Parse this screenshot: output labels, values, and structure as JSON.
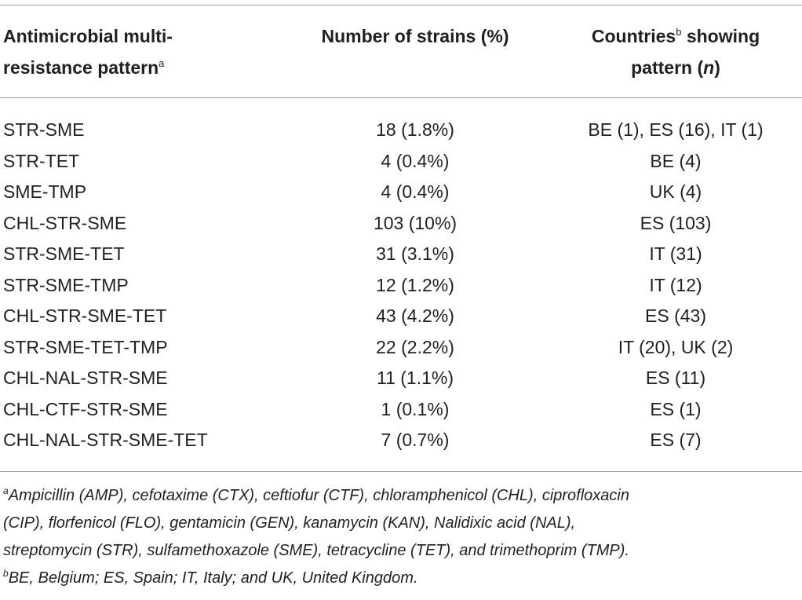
{
  "header": {
    "col1_line1": "Antimicrobial multi-",
    "col1_line2": "resistance pattern",
    "col1_sup": "a",
    "col2": "Number of strains (%)",
    "col3_line1_a": "Countries",
    "col3_sup": "b",
    "col3_line1_b": " showing",
    "col3_line2_a": "pattern (",
    "col3_line2_n": "n",
    "col3_line2_b": ")"
  },
  "rows": [
    {
      "pattern": "STR-SME",
      "strains": "18 (1.8%)",
      "countries": "BE (1), ES (16), IT (1)"
    },
    {
      "pattern": "STR-TET",
      "strains": "4 (0.4%)",
      "countries": "BE (4)"
    },
    {
      "pattern": "SME-TMP",
      "strains": "4 (0.4%)",
      "countries": "UK (4)"
    },
    {
      "pattern": "CHL-STR-SME",
      "strains": "103 (10%)",
      "countries": "ES (103)"
    },
    {
      "pattern": "STR-SME-TET",
      "strains": "31 (3.1%)",
      "countries": "IT (31)"
    },
    {
      "pattern": "STR-SME-TMP",
      "strains": "12 (1.2%)",
      "countries": "IT (12)"
    },
    {
      "pattern": "CHL-STR-SME-TET",
      "strains": "43 (4.2%)",
      "countries": "ES (43)"
    },
    {
      "pattern": "STR-SME-TET-TMP",
      "strains": "22 (2.2%)",
      "countries": "IT (20), UK (2)"
    },
    {
      "pattern": "CHL-NAL-STR-SME",
      "strains": "11 (1.1%)",
      "countries": "ES (11)"
    },
    {
      "pattern": "CHL-CTF-STR-SME",
      "strains": "1 (0.1%)",
      "countries": "ES (1)"
    },
    {
      "pattern": "CHL-NAL-STR-SME-TET",
      "strains": "7 (0.7%)",
      "countries": "ES (7)"
    }
  ],
  "footnotes": {
    "a_sup": "a",
    "a_line1": "Ampicillin (AMP), cefotaxime (CTX), ceftiofur (CTF), chloramphenicol (CHL), ciprofloxacin",
    "a_line2": "(CIP), florfenicol (FLO), gentamicin (GEN), kanamycin (KAN), Nalidixic acid (NAL),",
    "a_line3": "streptomycin (STR), sulfamethoxazole (SME), tetracycline (TET), and trimethoprim (TMP).",
    "b_sup": "b",
    "b_line1": "BE, Belgium; ES, Spain; IT, Italy; and UK, United Kingdom."
  }
}
